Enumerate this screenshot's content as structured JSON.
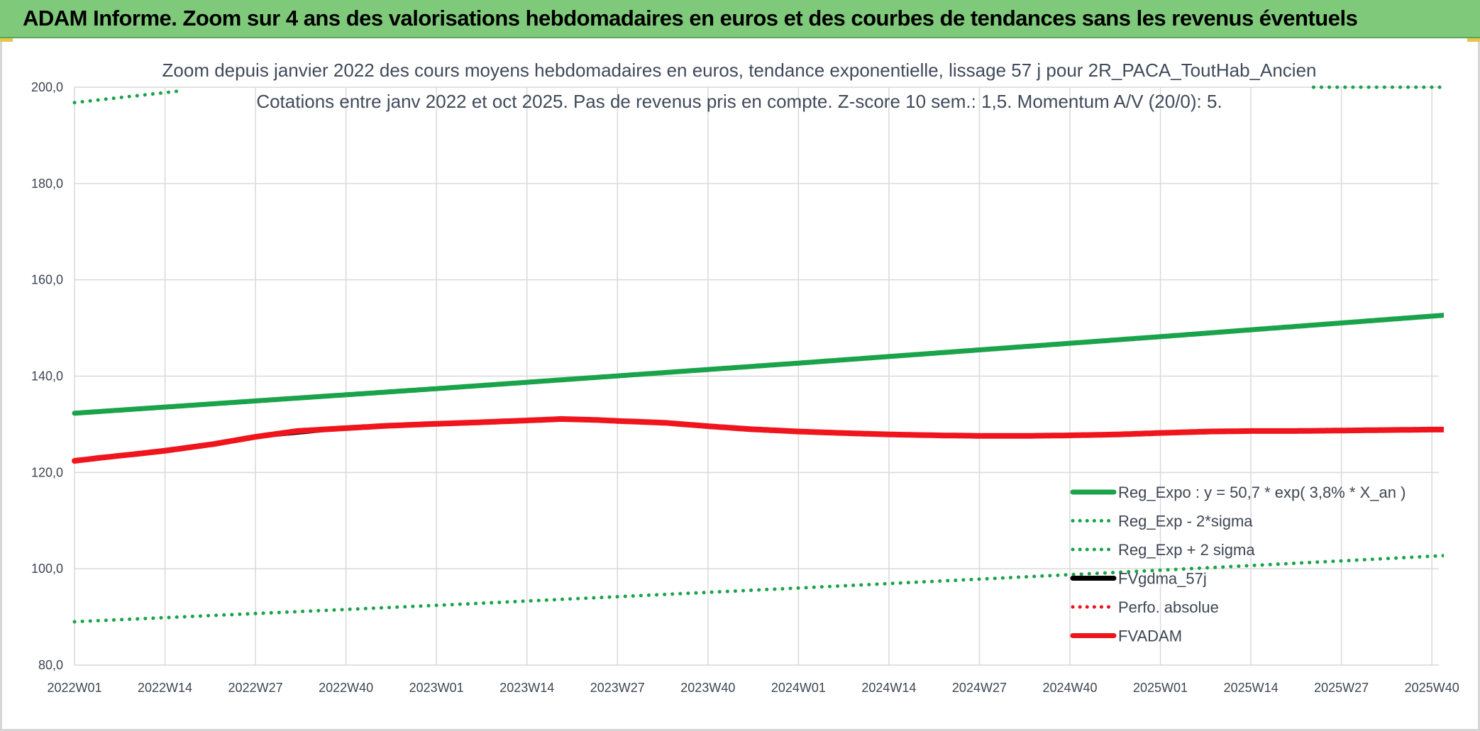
{
  "header": {
    "title": "ADAM Informe. Zoom sur 4 ans des valorisations hebdomadaires en euros et des courbes de tendances sans les revenus éventuels"
  },
  "chart_data": {
    "type": "line",
    "title_line1": "Zoom depuis janvier 2022 des cours moyens hebdomadaires en euros, tendance exponentielle, lissage 57 j pour 2R_PACA_ToutHab_Ancien",
    "title_line2": "Cotations entre janv 2022 et oct 2025. Pas de revenus pris en compte. Z-score 10 sem.: 1,5. Momentum A/V (20/0): 5.",
    "ylim": [
      80,
      200
    ],
    "yticks": [
      80,
      100,
      120,
      140,
      160,
      180,
      200
    ],
    "ytick_labels": [
      "80,0",
      "100,0",
      "120,0",
      "140,0",
      "160,0",
      "180,0",
      "200,0"
    ],
    "xlim": [
      0,
      196
    ],
    "categories": [
      "2022W01",
      "2022W14",
      "2022W27",
      "2022W40",
      "2023W01",
      "2023W14",
      "2023W27",
      "2023W40",
      "2024W01",
      "2024W14",
      "2024W27",
      "2024W40",
      "2025W01",
      "2025W14",
      "2025W27",
      "2025W40"
    ],
    "category_x": [
      0,
      13,
      26,
      39,
      52,
      65,
      78,
      91,
      104,
      117,
      130,
      143,
      156,
      169,
      182,
      195
    ],
    "series": [
      {
        "name": "Reg_Expo : y = 50,7 * exp( 3,8% *  X_an )",
        "color": "#1aa34a",
        "style": "solid",
        "width": 7,
        "x": [
          0,
          52,
          104,
          156,
          199
        ],
        "values": [
          132.3,
          137.4,
          142.7,
          148.2,
          152.9
        ]
      },
      {
        "name": "Reg_Exp - 2*sigma",
        "color": "#1aa34a",
        "style": "dotted",
        "width": 5,
        "x": [
          0,
          52,
          104,
          156,
          199
        ],
        "values": [
          89.0,
          92.4,
          96.0,
          99.7,
          102.9
        ]
      },
      {
        "name": "Reg_Exp + 2 sigma",
        "color": "#1aa34a",
        "style": "dotted",
        "width": 5,
        "x": [
          0,
          15,
          178,
          199
        ],
        "values": [
          196.8,
          199.2,
          200.0,
          200.0
        ],
        "visible_segments": [
          [
            0,
            15
          ],
          [
            178,
            199
          ]
        ]
      },
      {
        "name": "FVgdma_57j",
        "color": "#000000",
        "style": "solid",
        "width": 4,
        "x": [
          0,
          13,
          26,
          39,
          52,
          65,
          70,
          78,
          91,
          104,
          117,
          130,
          143,
          156,
          169,
          182,
          195,
          199
        ],
        "values": [
          122.3,
          124.8,
          127.3,
          129.1,
          130.1,
          130.8,
          131.0,
          130.6,
          129.7,
          128.6,
          127.9,
          127.6,
          127.6,
          128.0,
          128.4,
          128.6,
          128.8,
          128.9
        ]
      },
      {
        "name": "Perfo. absolue",
        "color": "#e8141c",
        "style": "dotted",
        "width": 4,
        "x": [],
        "values": []
      },
      {
        "name": "FVADAM",
        "color": "#f0141c",
        "style": "solid",
        "width": 8,
        "x": [
          0,
          4,
          8,
          13,
          20,
          26,
          32,
          39,
          45,
          52,
          58,
          65,
          70,
          75,
          78,
          85,
          91,
          97,
          104,
          110,
          117,
          124,
          130,
          137,
          143,
          150,
          156,
          163,
          169,
          175,
          182,
          188,
          195,
          199
        ],
        "values": [
          122.4,
          123.1,
          123.7,
          124.5,
          125.9,
          127.4,
          128.6,
          129.2,
          129.7,
          130.1,
          130.4,
          130.8,
          131.1,
          130.9,
          130.7,
          130.3,
          129.6,
          129.0,
          128.5,
          128.2,
          127.9,
          127.7,
          127.6,
          127.6,
          127.7,
          127.9,
          128.2,
          128.5,
          128.6,
          128.6,
          128.7,
          128.8,
          128.9,
          128.9
        ]
      }
    ],
    "legend": [
      {
        "label": "Reg_Expo : y = 50,7 * exp( 3,8% *  X_an )",
        "color": "#1aa34a",
        "style": "solid"
      },
      {
        "label": "Reg_Exp - 2*sigma",
        "color": "#1aa34a",
        "style": "dotted"
      },
      {
        "label": "Reg_Exp + 2 sigma",
        "color": "#1aa34a",
        "style": "dotted"
      },
      {
        "label": "FVgdma_57j",
        "color": "#000000",
        "style": "solid"
      },
      {
        "label": "Perfo. absolue",
        "color": "#e8141c",
        "style": "dotted"
      },
      {
        "label": "FVADAM",
        "color": "#f0141c",
        "style": "solid"
      }
    ],
    "legend_position": "bottom-right",
    "grid": true
  }
}
